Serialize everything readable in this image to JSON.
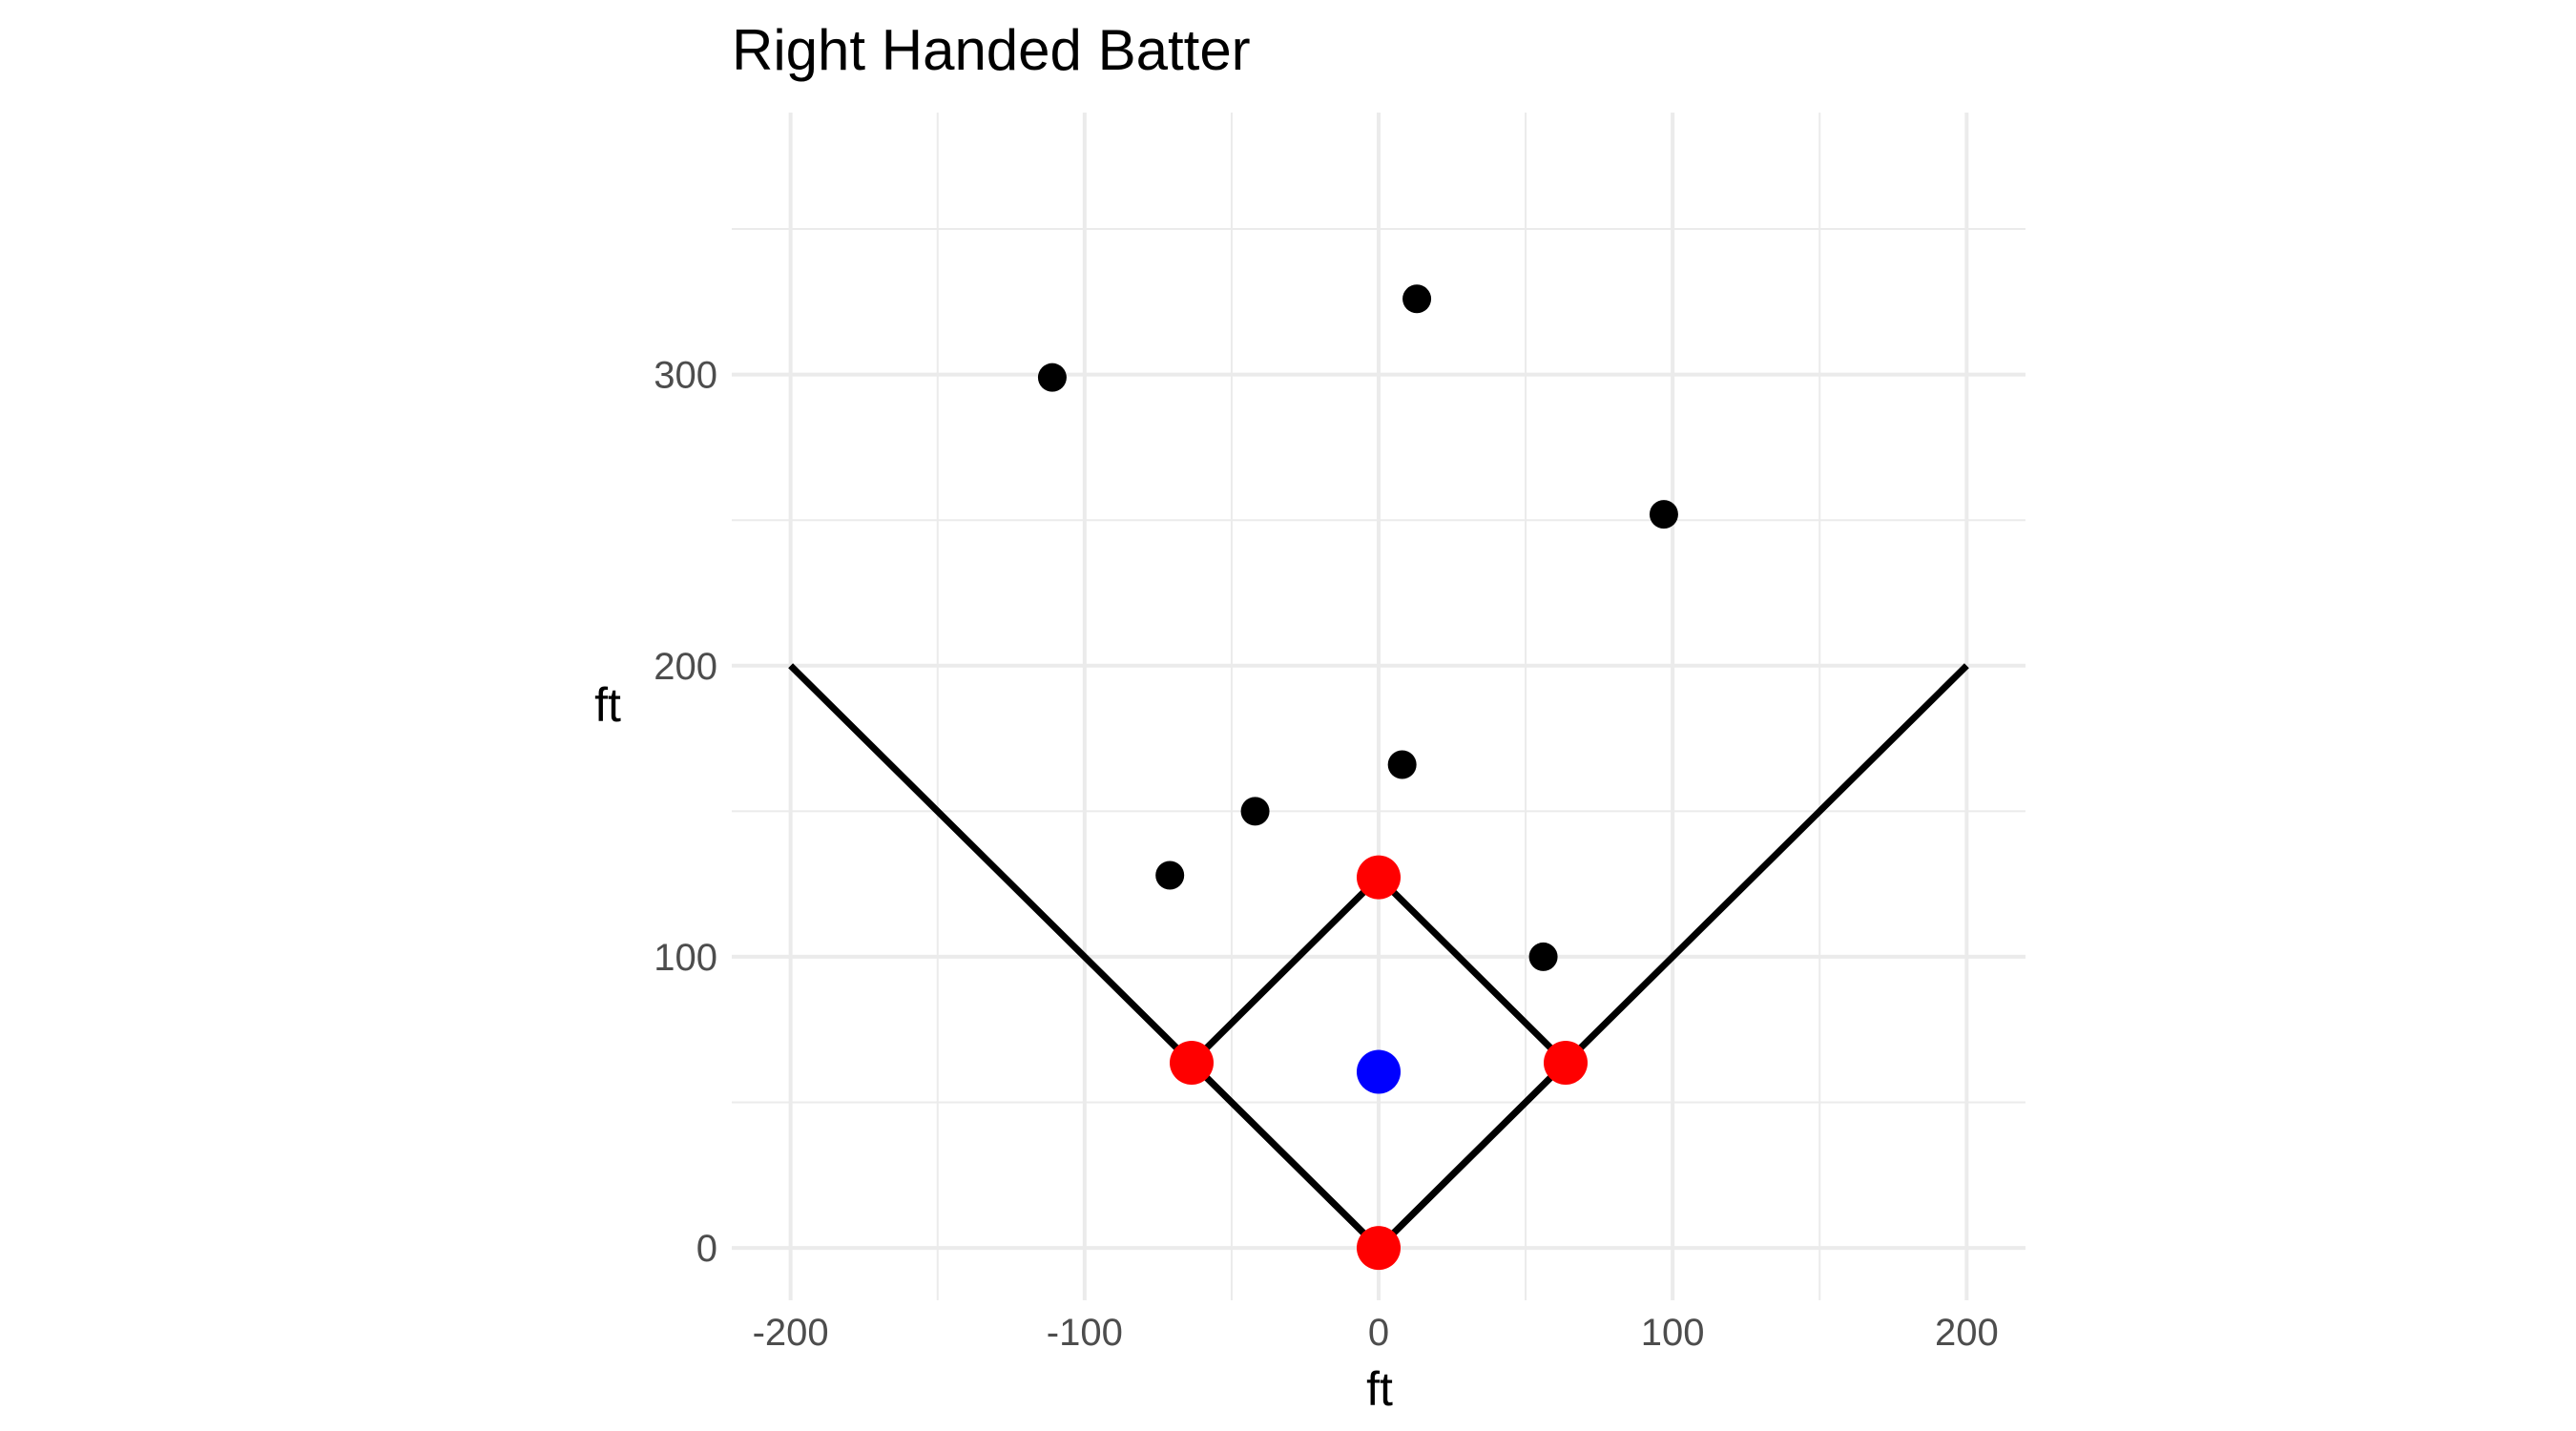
{
  "chart_data": {
    "type": "scatter",
    "title": "Right Handed Batter",
    "xlabel": "ft",
    "ylabel": "ft",
    "xlim": [
      -220,
      220
    ],
    "ylim": [
      -18,
      390
    ],
    "x_ticks": [
      -200,
      -100,
      0,
      100,
      200
    ],
    "x_tick_labels": [
      "-200",
      "-100",
      "0",
      "100",
      "200"
    ],
    "y_ticks": [
      0,
      100,
      200,
      300
    ],
    "y_tick_labels": [
      "0",
      "100",
      "200",
      "300"
    ],
    "grid": true,
    "foul_lines": [
      [
        -200,
        200
      ],
      [
        0,
        0
      ],
      [
        200,
        200
      ]
    ],
    "infield_diamond": [
      [
        0,
        0
      ],
      [
        63.6,
        63.6
      ],
      [
        0,
        127.3
      ],
      [
        -63.6,
        63.6
      ],
      [
        0,
        0
      ]
    ],
    "bases": {
      "color": "#ff0000",
      "points": [
        [
          0,
          0
        ],
        [
          63.6,
          63.6
        ],
        [
          0,
          127.3
        ],
        [
          -63.6,
          63.6
        ]
      ]
    },
    "pitcher": {
      "color": "#0000ff",
      "points": [
        [
          0,
          60.5
        ]
      ]
    },
    "hits": {
      "color": "#000000",
      "points": [
        [
          -111,
          299
        ],
        [
          13,
          326
        ],
        [
          97,
          252
        ],
        [
          8,
          166
        ],
        [
          -42,
          150
        ],
        [
          -71,
          128
        ],
        [
          56,
          100
        ]
      ]
    }
  }
}
